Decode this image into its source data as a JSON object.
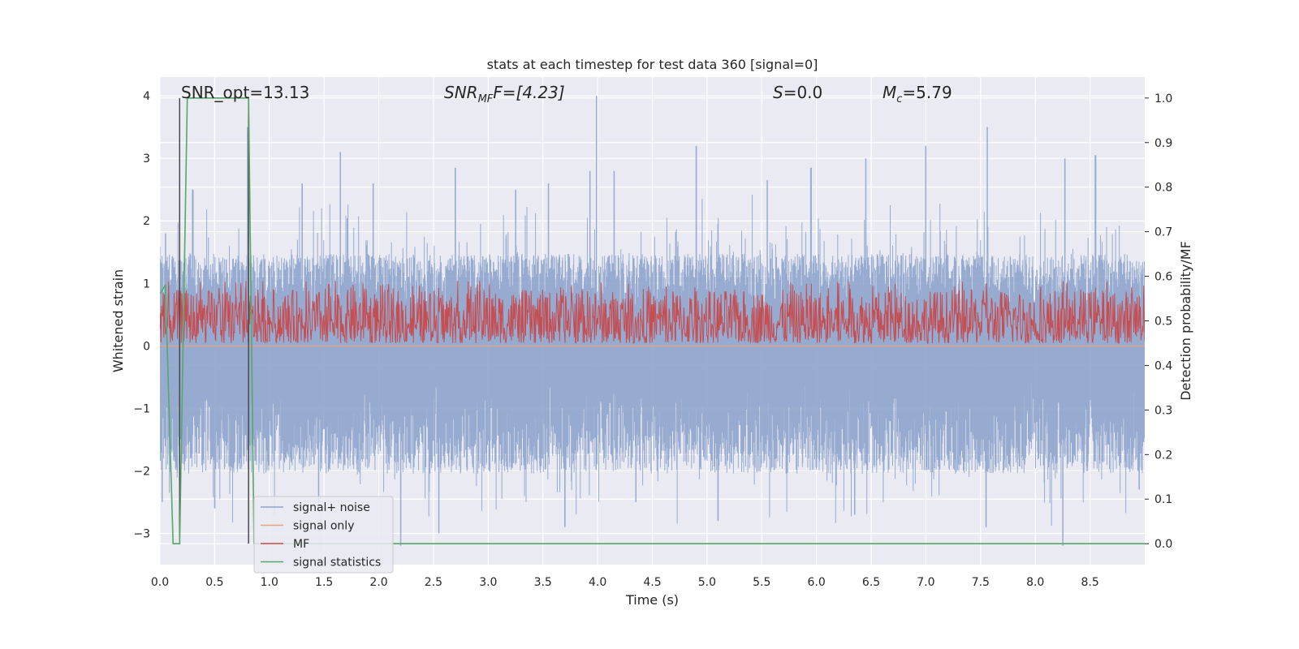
{
  "chart_data": {
    "type": "line",
    "title": "stats at each timestep for test data 360 [signal=0]",
    "xlabel": "Time (s)",
    "ylabel_left": "Whitened strain",
    "ylabel_right": "Detection probability/MF",
    "xlim": [
      0.0,
      9.0
    ],
    "ylim_left": [
      -3.5,
      4.3
    ],
    "ylim_right": [
      -0.047,
      1.047
    ],
    "grid": true,
    "legend_position": "lower-left",
    "x_ticks": [
      "0.0",
      "0.5",
      "1.0",
      "1.5",
      "2.0",
      "2.5",
      "3.0",
      "3.5",
      "4.0",
      "4.5",
      "5.0",
      "5.5",
      "6.0",
      "6.5",
      "7.0",
      "7.5",
      "8.0",
      "8.5"
    ],
    "x_tick_values": [
      0.0,
      0.5,
      1.0,
      1.5,
      2.0,
      2.5,
      3.0,
      3.5,
      4.0,
      4.5,
      5.0,
      5.5,
      6.0,
      6.5,
      7.0,
      7.5,
      8.0,
      8.5
    ],
    "y_left_ticks": [
      "4",
      "3",
      "2",
      "1",
      "0",
      "−1",
      "−2",
      "−3"
    ],
    "y_left_tick_values": [
      4,
      3,
      2,
      1,
      0,
      -1,
      -2,
      -3
    ],
    "y_right_ticks": [
      "1.0",
      "0.9",
      "0.8",
      "0.7",
      "0.6",
      "0.5",
      "0.4",
      "0.3",
      "0.2",
      "0.1",
      "0.0"
    ],
    "y_right_tick_values": [
      1.0,
      0.9,
      0.8,
      0.7,
      0.6,
      0.5,
      0.4,
      0.3,
      0.2,
      0.1,
      0.0
    ],
    "annotations": {
      "snr_opt": "SNR_opt=13.13",
      "snr_mf_main": "SNR",
      "snr_mf_sub": "MF",
      "snr_mf_tail": "F=[4.23]",
      "s_main": "S",
      "s_tail": "=0.0",
      "mc_main": "M",
      "mc_sub": "c",
      "mc_tail": "=5.79"
    },
    "vertical_markers_x": [
      0.18,
      0.81
    ],
    "series": [
      {
        "name": "signal+ noise",
        "color": "#8ea4cc",
        "axis": "left",
        "kind": "noise",
        "envelope_typical_upper": 1.2,
        "envelope_typical_lower": -1.7,
        "peaks": [
          [
            0.05,
            1.8
          ],
          [
            0.3,
            2.5
          ],
          [
            0.8,
            3.5
          ],
          [
            1.3,
            2.6
          ],
          [
            1.65,
            3.1
          ],
          [
            1.95,
            2.6
          ],
          [
            2.7,
            2.85
          ],
          [
            3.25,
            2.5
          ],
          [
            3.55,
            2.6
          ],
          [
            3.93,
            2.8
          ],
          [
            3.99,
            4.0
          ],
          [
            4.15,
            2.8
          ],
          [
            4.9,
            3.2
          ],
          [
            5.55,
            2.65
          ],
          [
            5.95,
            2.85
          ],
          [
            6.45,
            3.0
          ],
          [
            7.0,
            3.2
          ],
          [
            7.56,
            3.5
          ],
          [
            8.27,
            3.0
          ],
          [
            8.55,
            3.05
          ]
        ],
        "troughs": [
          [
            0.02,
            -2.5
          ],
          [
            0.5,
            -2.6
          ],
          [
            1.45,
            -2.5
          ],
          [
            2.2,
            -3.2
          ],
          [
            2.55,
            -3.0
          ],
          [
            3.7,
            -2.9
          ],
          [
            4.35,
            -2.5
          ],
          [
            5.1,
            -2.8
          ],
          [
            6.35,
            -2.7
          ],
          [
            7.55,
            -2.9
          ],
          [
            8.25,
            -3.2
          ],
          [
            8.95,
            -2.3
          ]
        ]
      },
      {
        "name": "signal only",
        "color": "#e8a183",
        "axis": "left",
        "x": [
          0.0,
          9.0
        ],
        "y": [
          0.0,
          0.0
        ]
      },
      {
        "name": "MF",
        "color": "#c44e52",
        "axis": "right",
        "kind": "noise",
        "baseline": 0.49,
        "typical_upper": 0.57,
        "typical_lower": 0.45,
        "max": 0.59
      },
      {
        "name": "signal statistics",
        "color": "#55a868",
        "axis": "right",
        "x": [
          0.0,
          0.05,
          0.12,
          0.18,
          0.25,
          0.81,
          0.86,
          0.9,
          9.0
        ],
        "y": [
          0.56,
          0.58,
          0.0,
          0.0,
          1.0,
          1.0,
          0.0,
          0.0,
          0.0
        ]
      }
    ],
    "legend": [
      "signal+ noise",
      "signal only",
      "MF",
      "signal statistics"
    ]
  }
}
